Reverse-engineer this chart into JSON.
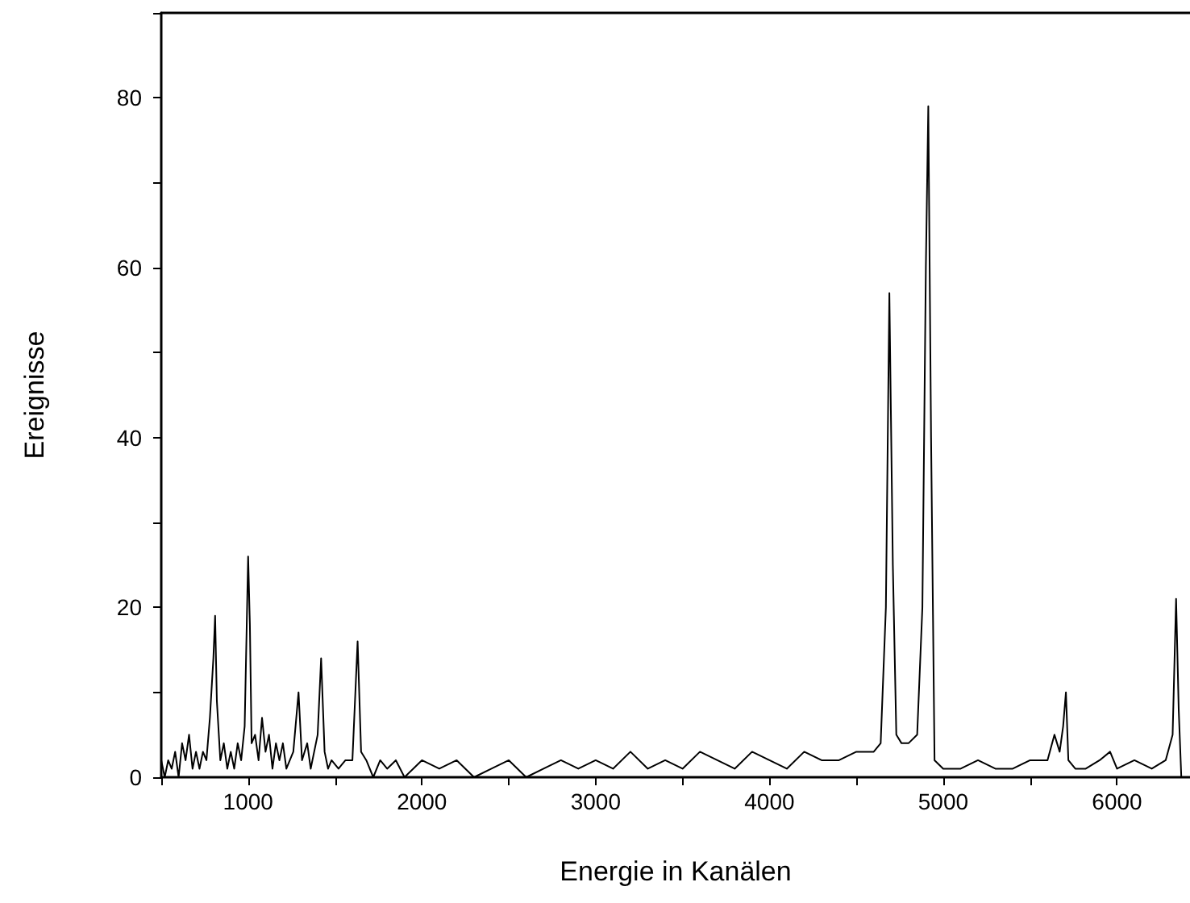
{
  "chart_data": {
    "type": "line",
    "xlabel": "Energie in Kanälen",
    "ylabel": "Ereignisse",
    "xlim": [
      500,
      6420
    ],
    "ylim": [
      0,
      90
    ],
    "xticks": [
      {
        "value": 500,
        "label": null
      },
      1000,
      {
        "value": 1500,
        "label": null
      },
      2000,
      {
        "value": 2500,
        "label": null
      },
      3000,
      {
        "value": 3500,
        "label": null
      },
      4000,
      {
        "value": 4500,
        "label": null
      },
      5000,
      {
        "value": 5500,
        "label": null
      },
      6000
    ],
    "yticks": [
      0,
      {
        "value": 10,
        "label": null
      },
      20,
      {
        "value": 30,
        "label": null
      },
      40,
      {
        "value": 50,
        "label": null
      },
      60,
      {
        "value": 70,
        "label": null
      },
      80,
      {
        "value": 90,
        "label": null
      }
    ],
    "grid": false,
    "marker": "none",
    "line_style": "solid",
    "series": [
      {
        "color": "#000000",
        "x": [
          500,
          520,
          540,
          560,
          580,
          600,
          620,
          640,
          660,
          680,
          700,
          720,
          740,
          760,
          780,
          800,
          810,
          820,
          840,
          860,
          880,
          900,
          920,
          940,
          960,
          980,
          1000,
          1010,
          1020,
          1040,
          1060,
          1080,
          1100,
          1120,
          1140,
          1160,
          1180,
          1200,
          1220,
          1260,
          1290,
          1310,
          1340,
          1360,
          1400,
          1420,
          1440,
          1460,
          1480,
          1520,
          1560,
          1600,
          1630,
          1650,
          1680,
          1720,
          1760,
          1800,
          1850,
          1900,
          1950,
          2000,
          2100,
          2200,
          2300,
          2400,
          2500,
          2600,
          2700,
          2800,
          2900,
          3000,
          3100,
          3200,
          3300,
          3400,
          3500,
          3600,
          3700,
          3800,
          3900,
          4000,
          4100,
          4200,
          4300,
          4400,
          4500,
          4600,
          4640,
          4670,
          4690,
          4710,
          4730,
          4760,
          4800,
          4850,
          4880,
          4900,
          4914,
          4930,
          4950,
          5000,
          5100,
          5200,
          5300,
          5400,
          5500,
          5600,
          5640,
          5670,
          5690,
          5706,
          5720,
          5760,
          5820,
          5900,
          5960,
          6000,
          6100,
          6200,
          6280,
          6320,
          6340,
          6355,
          6370,
          6400
        ],
        "values": [
          2,
          0,
          2,
          1,
          3,
          0,
          4,
          2,
          5,
          1,
          3,
          1,
          3,
          2,
          7,
          14,
          19,
          9,
          2,
          4,
          1,
          3,
          1,
          4,
          2,
          6,
          26,
          18,
          4,
          5,
          2,
          7,
          3,
          5,
          1,
          4,
          2,
          4,
          1,
          3,
          10,
          2,
          4,
          1,
          5,
          14,
          3,
          1,
          2,
          1,
          2,
          2,
          16,
          3,
          2,
          0,
          2,
          1,
          2,
          0,
          1,
          2,
          1,
          2,
          0,
          1,
          2,
          0,
          1,
          2,
          1,
          2,
          1,
          3,
          1,
          2,
          1,
          3,
          2,
          1,
          3,
          2,
          1,
          3,
          2,
          2,
          3,
          3,
          4,
          20,
          57,
          25,
          5,
          4,
          4,
          5,
          20,
          60,
          79,
          40,
          2,
          1,
          1,
          2,
          1,
          1,
          2,
          2,
          5,
          3,
          6,
          10,
          2,
          1,
          1,
          2,
          3,
          1,
          2,
          1,
          2,
          5,
          21,
          8,
          0,
          0
        ]
      }
    ]
  }
}
